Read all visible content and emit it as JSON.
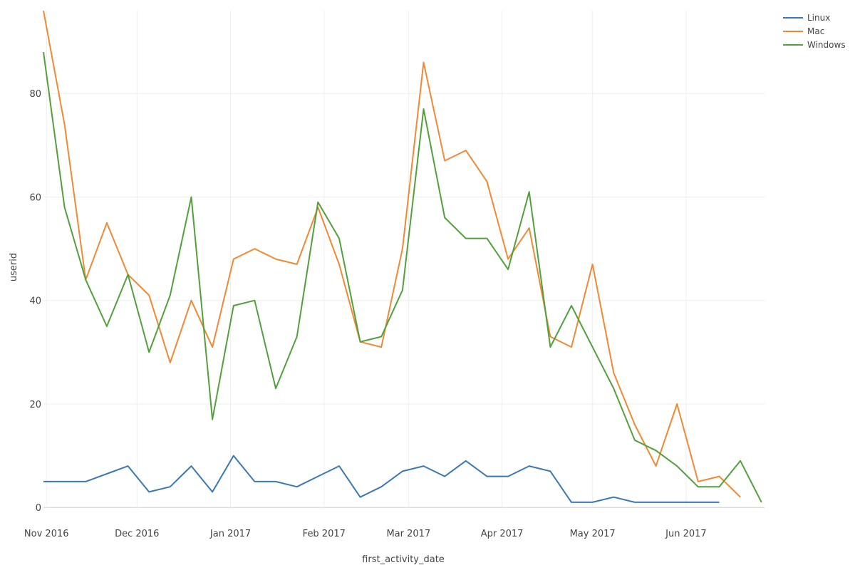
{
  "chart_data": {
    "type": "line",
    "xlabel": "first_activity_date",
    "ylabel": "userid",
    "xlim": [
      "2016-10-31",
      "2017-06-27"
    ],
    "ylim": [
      -3,
      96
    ],
    "yticks": [
      0,
      20,
      40,
      60,
      80
    ],
    "xticks": [
      {
        "date": "2016-11-01",
        "label": "Nov 2016"
      },
      {
        "date": "2016-12-01",
        "label": "Dec 2016"
      },
      {
        "date": "2017-01-01",
        "label": "Jan 2017"
      },
      {
        "date": "2017-02-01",
        "label": "Feb 2017"
      },
      {
        "date": "2017-03-01",
        "label": "Mar 2017"
      },
      {
        "date": "2017-04-01",
        "label": "Apr 2017"
      },
      {
        "date": "2017-05-01",
        "label": "May 2017"
      },
      {
        "date": "2017-06-01",
        "label": "Jun 2017"
      }
    ],
    "grid": true,
    "legend_position": "top-right",
    "x": [
      "2016-10-31",
      "2016-11-07",
      "2016-11-14",
      "2016-11-21",
      "2016-11-28",
      "2016-12-05",
      "2016-12-12",
      "2016-12-19",
      "2016-12-26",
      "2017-01-02",
      "2017-01-09",
      "2017-01-16",
      "2017-01-23",
      "2017-01-30",
      "2017-02-06",
      "2017-02-13",
      "2017-02-20",
      "2017-02-27",
      "2017-03-06",
      "2017-03-13",
      "2017-03-20",
      "2017-03-27",
      "2017-04-03",
      "2017-04-10",
      "2017-04-17",
      "2017-04-24",
      "2017-05-01",
      "2017-05-08",
      "2017-05-15",
      "2017-05-22",
      "2017-05-29",
      "2017-06-05",
      "2017-06-12",
      "2017-06-19",
      "2017-06-26"
    ],
    "series": [
      {
        "name": "Linux",
        "color": "#3a78b3",
        "values": [
          5,
          5,
          5,
          6.5,
          8,
          3,
          4,
          8,
          3,
          10,
          5,
          5,
          4,
          6,
          8,
          2,
          4,
          7,
          8,
          6,
          9,
          6,
          6,
          8,
          7,
          1,
          1,
          2,
          1,
          1,
          1,
          1,
          1,
          null,
          null
        ]
      },
      {
        "name": "Mac",
        "color": "#ee8a35",
        "values": [
          96,
          74,
          44,
          55,
          45,
          41,
          28,
          40,
          31,
          48,
          50,
          48,
          47,
          58,
          47,
          32,
          31,
          50,
          86,
          67,
          69,
          63,
          48,
          54,
          33,
          31,
          47,
          26,
          16,
          8,
          20,
          5,
          6,
          2,
          null
        ]
      },
      {
        "name": "Windows",
        "color": "#52a03c",
        "values": [
          88,
          58,
          44,
          35,
          45,
          30,
          41,
          60,
          17,
          39,
          40,
          23,
          33,
          59,
          52,
          32,
          33,
          42,
          77,
          56,
          52,
          52,
          46,
          61,
          31,
          39,
          31,
          23,
          13,
          11,
          8,
          4,
          4,
          9,
          1
        ]
      }
    ]
  }
}
